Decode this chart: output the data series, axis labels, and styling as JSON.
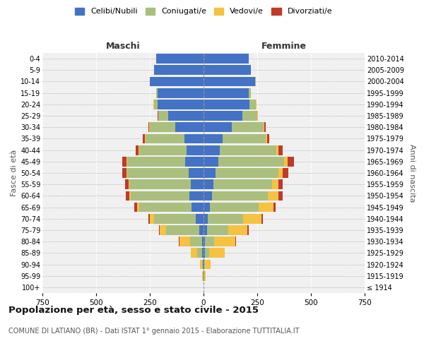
{
  "age_groups": [
    "100+",
    "95-99",
    "90-94",
    "85-89",
    "80-84",
    "75-79",
    "70-74",
    "65-69",
    "60-64",
    "55-59",
    "50-54",
    "45-49",
    "40-44",
    "35-39",
    "30-34",
    "25-29",
    "20-24",
    "15-19",
    "10-14",
    "5-9",
    "0-4"
  ],
  "birth_years": [
    "≤ 1914",
    "1915-1919",
    "1920-1924",
    "1925-1929",
    "1930-1934",
    "1935-1939",
    "1940-1944",
    "1945-1949",
    "1950-1954",
    "1955-1959",
    "1960-1964",
    "1965-1969",
    "1970-1974",
    "1975-1979",
    "1980-1984",
    "1985-1989",
    "1990-1994",
    "1995-1999",
    "2000-2004",
    "2005-2009",
    "2010-2014"
  ],
  "male": {
    "celibi": [
      0,
      1,
      2,
      5,
      8,
      20,
      35,
      55,
      65,
      60,
      70,
      85,
      80,
      90,
      130,
      165,
      215,
      215,
      250,
      230,
      220
    ],
    "coniugati": [
      0,
      2,
      5,
      25,
      55,
      155,
      195,
      245,
      275,
      285,
      285,
      270,
      220,
      180,
      120,
      45,
      15,
      5,
      0,
      0,
      0
    ],
    "vedovi": [
      0,
      2,
      8,
      30,
      50,
      30,
      20,
      8,
      5,
      3,
      2,
      2,
      2,
      2,
      2,
      2,
      2,
      0,
      0,
      0,
      0
    ],
    "divorziati": [
      0,
      0,
      0,
      0,
      2,
      2,
      5,
      15,
      18,
      18,
      20,
      22,
      15,
      10,
      5,
      3,
      1,
      0,
      0,
      0,
      0
    ]
  },
  "female": {
    "nubili": [
      0,
      2,
      3,
      5,
      8,
      15,
      20,
      30,
      40,
      45,
      55,
      70,
      75,
      90,
      130,
      180,
      215,
      210,
      240,
      220,
      210
    ],
    "coniugate": [
      0,
      2,
      5,
      20,
      40,
      100,
      165,
      225,
      260,
      275,
      295,
      305,
      265,
      200,
      150,
      70,
      30,
      10,
      2,
      0,
      0
    ],
    "vedove": [
      0,
      5,
      25,
      75,
      100,
      90,
      85,
      70,
      50,
      30,
      20,
      15,
      10,
      5,
      3,
      2,
      1,
      0,
      0,
      0,
      0
    ],
    "divorziate": [
      0,
      0,
      0,
      0,
      2,
      5,
      5,
      10,
      18,
      18,
      25,
      30,
      20,
      12,
      5,
      2,
      1,
      0,
      0,
      0,
      0
    ]
  },
  "colors": {
    "celibi_nubili": "#4472C4",
    "coniugati": "#AABF7E",
    "vedovi": "#F5C242",
    "divorziati": "#C0392B"
  },
  "title": "Popolazione per età, sesso e stato civile - 2015",
  "subtitle": "COMUNE DI LATIANO (BR) - Dati ISTAT 1° gennaio 2015 - Elaborazione TUTTITALIA.IT",
  "xlabel_left": "Maschi",
  "xlabel_right": "Femmine",
  "ylabel_left": "Fasce di età",
  "ylabel_right": "Anni di nascita",
  "xlim": 750,
  "legend_labels": [
    "Celibi/Nubili",
    "Coniugati/e",
    "Vedovi/e",
    "Divorziati/e"
  ],
  "bg_color": "#ffffff",
  "plot_bg_color": "#f0f0f0"
}
